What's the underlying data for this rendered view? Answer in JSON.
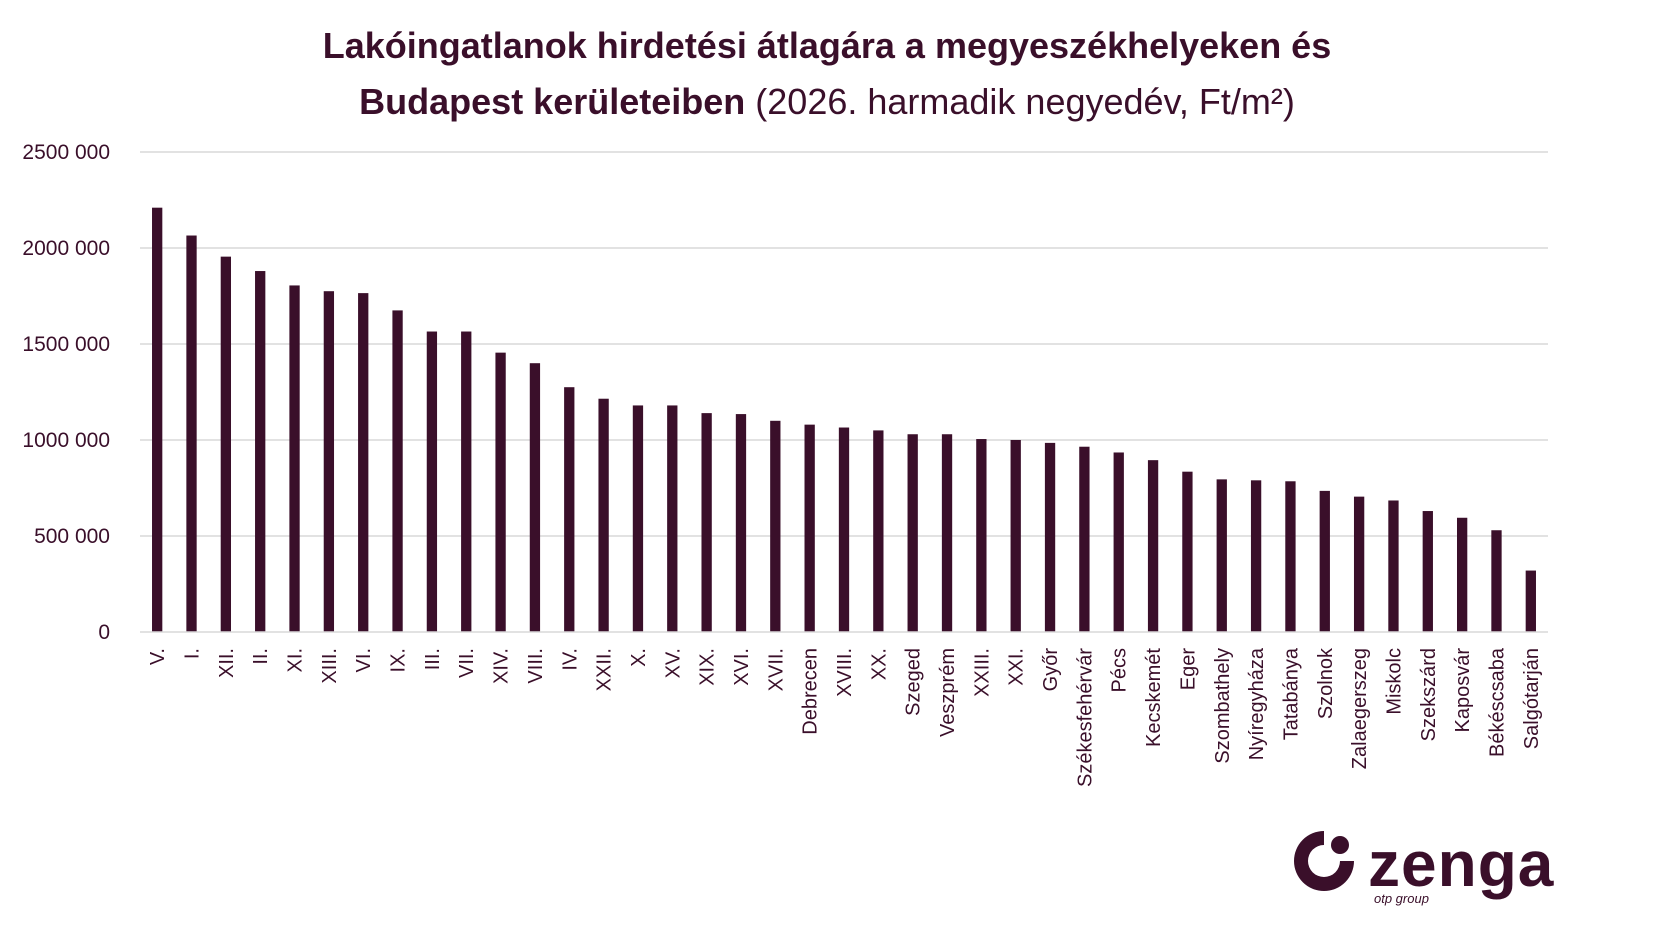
{
  "chart_data": {
    "type": "bar",
    "title": "Lakóingatlanok hirdetési átlagára a megyeszékhelyeken és Budapest kerületeiben",
    "title_bold_line1": "Lakóingatlanok hirdetési átlagára a megyeszékhelyeken és",
    "title_bold_line2": "Budapest kerületeiben",
    "title_light_line2": "(2026. harmadik negyedév, Ft/m²)",
    "xlabel": "",
    "ylabel": "",
    "ylim": [
      0,
      2500000
    ],
    "yticks": [
      0,
      500000,
      1000000,
      1500000,
      2000000,
      2500000
    ],
    "ytick_labels": [
      "0",
      "500 000",
      "1000 000",
      "1500 000",
      "2000 000",
      "2500 000"
    ],
    "grid": true,
    "bar_color": "#3a0f2a",
    "categories": [
      "V.",
      "I.",
      "XII.",
      "II.",
      "XI.",
      "XIII.",
      "VI.",
      "IX.",
      "III.",
      "VII.",
      "XIV.",
      "VIII.",
      "IV.",
      "XXII.",
      "X.",
      "XV.",
      "XIX.",
      "XVI.",
      "XVII.",
      "Debrecen",
      "XVIII.",
      "XX.",
      "Szeged",
      "Veszprém",
      "XXIII.",
      "XXI.",
      "Győr",
      "Székesfehérvár",
      "Pécs",
      "Kecskemét",
      "Eger",
      "Szombathely",
      "Nyíregyháza",
      "Tatabánya",
      "Szolnok",
      "Zalaegerszeg",
      "Miskolc",
      "Szekszárd",
      "Kaposvár",
      "Békéscsaba",
      "Salgótarján"
    ],
    "values": [
      2210000,
      2065000,
      1955000,
      1880000,
      1805000,
      1775000,
      1765000,
      1675000,
      1565000,
      1565000,
      1455000,
      1400000,
      1275000,
      1215000,
      1180000,
      1180000,
      1140000,
      1135000,
      1100000,
      1080000,
      1065000,
      1050000,
      1030000,
      1030000,
      1005000,
      1000000,
      985000,
      965000,
      935000,
      895000,
      835000,
      795000,
      790000,
      785000,
      735000,
      705000,
      685000,
      630000,
      595000,
      530000,
      320000
    ]
  },
  "logo": {
    "word": "zenga",
    "sub": "otp group",
    "color": "#3a0f2a"
  }
}
